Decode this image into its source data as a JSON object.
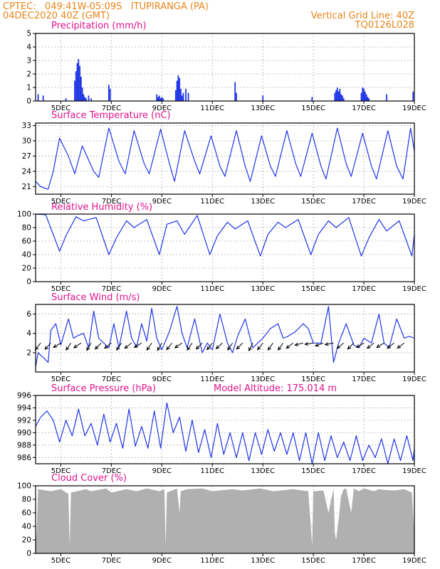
{
  "header": {
    "left_line1": "CPTEC:   049:41W-05:09S   ITUPIRANGA (PA)",
    "left_line2": "04DEC2020 40Z (GMT)",
    "right_line1": "Vertical Grid Line: 40Z",
    "right_line2": "TQ0126L028"
  },
  "colors": {
    "header": "#e8841a",
    "panel_title": "#e0148c",
    "series_line": "#1f35e6",
    "precip_bar": "#1f35e6",
    "cloud_fill": "#b0b0b0",
    "wind_arrow": "#000000"
  },
  "chart_data": [
    {
      "id": "precip",
      "type": "bar",
      "title": "Precipitation (mm/h)",
      "x_tick_labels": [
        "5DEC",
        "7DEC",
        "9DEC",
        "11DEC",
        "13DEC",
        "15DEC",
        "17DEC",
        "19DEC"
      ],
      "x_range_days": [
        4.0,
        19.0
      ],
      "ylim": [
        0,
        5
      ],
      "y_ticks": [
        0,
        1,
        2,
        3,
        4,
        5
      ],
      "grid": true,
      "x": [
        4.1,
        4.3,
        5.2,
        5.55,
        5.6,
        5.65,
        5.7,
        5.75,
        5.8,
        5.85,
        5.9,
        5.95,
        6.0,
        6.1,
        6.2,
        6.9,
        6.95,
        8.8,
        8.85,
        8.9,
        8.95,
        9.0,
        9.05,
        9.55,
        9.6,
        9.65,
        9.7,
        9.75,
        9.8,
        9.85,
        9.95,
        10.05,
        11.9,
        11.95,
        13.0,
        14.95,
        15.85,
        15.9,
        15.95,
        16.0,
        16.05,
        16.1,
        16.15,
        16.2,
        16.9,
        16.95,
        17.0,
        17.05,
        17.1,
        17.15,
        17.2,
        17.9,
        18.95
      ],
      "values": [
        0.5,
        0.4,
        0.2,
        1.5,
        2.2,
        2.8,
        3.1,
        2.6,
        1.8,
        1.0,
        0.5,
        0.3,
        0.2,
        0.4,
        0.2,
        1.2,
        0.9,
        0.5,
        0.3,
        0.4,
        0.2,
        0.3,
        0.2,
        0.8,
        1.5,
        1.9,
        1.7,
        0.9,
        0.4,
        0.6,
        0.9,
        0.6,
        1.4,
        0.6,
        0.4,
        0.3,
        0.6,
        0.8,
        1.0,
        0.7,
        0.9,
        0.5,
        0.4,
        0.2,
        0.6,
        1.0,
        0.9,
        0.7,
        0.5,
        0.3,
        0.2,
        0.5,
        0.7
      ]
    },
    {
      "id": "temp",
      "type": "line",
      "title": "Surface Temperature (nC)",
      "x_tick_labels": [
        "5DEC",
        "7DEC",
        "9DEC",
        "11DEC",
        "13DEC",
        "15DEC",
        "17DEC",
        "19DEC"
      ],
      "x_range_days": [
        4.0,
        19.0
      ],
      "ylim": [
        19.5,
        33.5
      ],
      "y_ticks": [
        21,
        24,
        27,
        30,
        33
      ],
      "grid": true,
      "x": [
        4.0,
        4.2,
        4.4,
        4.5,
        4.7,
        4.95,
        5.3,
        5.55,
        5.85,
        6.3,
        6.5,
        6.9,
        7.3,
        7.55,
        7.9,
        8.3,
        8.5,
        8.95,
        9.3,
        9.5,
        9.9,
        10.3,
        10.5,
        10.95,
        11.3,
        11.5,
        11.95,
        12.3,
        12.5,
        12.95,
        13.3,
        13.5,
        13.95,
        14.3,
        14.5,
        14.95,
        15.3,
        15.5,
        15.95,
        16.3,
        16.5,
        16.95,
        17.3,
        17.5,
        17.95,
        18.3,
        18.55,
        18.85,
        19.0
      ],
      "values": [
        22.0,
        21.0,
        20.6,
        20.5,
        24.0,
        30.5,
        27.0,
        23.5,
        29.0,
        24.0,
        22.8,
        32.5,
        26.0,
        23.5,
        32.0,
        25.5,
        23.5,
        32.3,
        25.5,
        22.0,
        32.0,
        26.0,
        23.5,
        31.0,
        25.0,
        23.0,
        32.0,
        25.0,
        22.0,
        31.0,
        25.0,
        23.0,
        32.0,
        25.5,
        23.0,
        31.5,
        25.0,
        22.5,
        32.5,
        25.5,
        23.0,
        31.5,
        25.0,
        22.5,
        32.0,
        25.0,
        22.5,
        32.5,
        28.0
      ]
    },
    {
      "id": "rh",
      "type": "line",
      "title": "Relative Humidity (%)",
      "x_tick_labels": [
        "5DEC",
        "7DEC",
        "9DEC",
        "11DEC",
        "13DEC",
        "15DEC",
        "17DEC",
        "19DEC"
      ],
      "x_range_days": [
        4.0,
        19.0
      ],
      "ylim": [
        0,
        100
      ],
      "y_ticks": [
        0,
        20,
        40,
        60,
        80,
        100
      ],
      "grid": true,
      "x": [
        4.0,
        4.4,
        4.95,
        5.2,
        5.6,
        5.9,
        6.4,
        6.9,
        7.2,
        7.6,
        7.9,
        8.4,
        8.9,
        9.2,
        9.6,
        9.9,
        10.4,
        10.9,
        11.2,
        11.6,
        11.9,
        12.4,
        12.9,
        13.2,
        13.6,
        13.9,
        14.4,
        14.9,
        15.2,
        15.6,
        15.9,
        16.4,
        16.9,
        17.2,
        17.6,
        17.9,
        18.4,
        18.9,
        19.0
      ],
      "values": [
        100,
        99,
        45,
        68,
        96,
        90,
        95,
        40,
        65,
        90,
        80,
        92,
        40,
        85,
        90,
        70,
        98,
        40,
        68,
        88,
        78,
        90,
        38,
        70,
        88,
        80,
        92,
        40,
        70,
        90,
        80,
        95,
        38,
        65,
        92,
        75,
        90,
        38,
        70
      ]
    },
    {
      "id": "wind",
      "type": "line",
      "title": "Surface Wind (m/s)",
      "x_tick_labels": [
        "5DEC",
        "7DEC",
        "9DEC",
        "11DEC",
        "13DEC",
        "15DEC",
        "17DEC",
        "19DEC"
      ],
      "x_range_days": [
        4.0,
        19.0
      ],
      "ylim": [
        0,
        7
      ],
      "y_ticks": [
        2,
        4,
        6
      ],
      "grid": true,
      "x": [
        4.0,
        4.1,
        4.3,
        4.5,
        4.6,
        4.8,
        5.0,
        5.3,
        5.5,
        5.7,
        5.9,
        6.1,
        6.3,
        6.5,
        6.7,
        6.9,
        7.1,
        7.3,
        7.6,
        7.8,
        8.0,
        8.2,
        8.4,
        8.6,
        8.8,
        9.0,
        9.3,
        9.6,
        9.8,
        10.0,
        10.3,
        10.6,
        10.8,
        11.0,
        11.3,
        11.6,
        11.8,
        12.0,
        12.3,
        12.6,
        12.8,
        13.0,
        13.3,
        13.6,
        13.8,
        14.0,
        14.3,
        14.6,
        14.8,
        15.0,
        15.3,
        15.6,
        15.8,
        16.0,
        16.3,
        16.6,
        16.8,
        17.0,
        17.3,
        17.6,
        17.8,
        18.0,
        18.3,
        18.6,
        18.8,
        19.0
      ],
      "values": [
        0.5,
        2.0,
        1.5,
        1.0,
        4.3,
        5.0,
        2.8,
        5.5,
        3.5,
        3.8,
        4.0,
        2.5,
        6.3,
        3.5,
        3.0,
        2.5,
        5.0,
        2.5,
        6.3,
        3.5,
        2.6,
        5.0,
        3.2,
        6.6,
        3.5,
        2.3,
        4.2,
        6.8,
        4.0,
        2.5,
        5.5,
        2.0,
        3.0,
        2.3,
        6.0,
        3.0,
        2.0,
        3.7,
        5.5,
        2.5,
        3.0,
        3.5,
        4.5,
        5.0,
        3.5,
        3.7,
        4.2,
        5.0,
        4.5,
        3.0,
        3.0,
        6.8,
        1.0,
        3.0,
        5.0,
        2.8,
        2.5,
        3.5,
        3.0,
        6.0,
        3.0,
        2.5,
        5.5,
        3.5,
        3.7,
        3.5
      ],
      "arrows": {
        "x": [
          4.2,
          4.6,
          5.0,
          5.4,
          5.8,
          6.2,
          6.6,
          7.0,
          7.4,
          7.8,
          8.2,
          8.6,
          9.0,
          9.4,
          9.8,
          10.2,
          10.6,
          11.0,
          11.4,
          11.8,
          12.2,
          12.6,
          13.0,
          13.4,
          13.8,
          14.2,
          14.6,
          15.0,
          15.4,
          15.8,
          16.2,
          16.6,
          17.0,
          17.4,
          17.8,
          18.2,
          18.6
        ],
        "u": [
          -0.8,
          -0.9,
          -1.0,
          -0.7,
          -0.9,
          -0.6,
          -0.8,
          -0.9,
          -0.7,
          -0.9,
          -1.0,
          -0.7,
          -0.6,
          -0.8,
          -0.9,
          -0.7,
          -0.8,
          -0.8,
          -0.9,
          -0.7,
          -0.8,
          -0.6,
          -0.8,
          -0.7,
          -0.7,
          -0.9,
          -1.2,
          -1.3,
          -1.1,
          -1.6,
          -1.0,
          -0.9,
          -1.0,
          -0.9,
          -1.0,
          -0.9,
          -0.8
        ],
        "v": [
          -1.0,
          -1.0,
          -0.6,
          -1.0,
          -0.6,
          -1.0,
          -0.8,
          -0.7,
          -1.0,
          -0.7,
          -0.6,
          -1.0,
          -1.0,
          -1.0,
          -0.6,
          -1.0,
          -0.8,
          -1.0,
          -0.8,
          -1.0,
          -0.8,
          -1.2,
          -1.0,
          -1.0,
          -1.0,
          -0.7,
          -0.3,
          -0.2,
          -0.4,
          -0.3,
          -0.8,
          -0.9,
          -0.6,
          -0.7,
          -0.6,
          -0.7,
          -0.6
        ]
      }
    },
    {
      "id": "pressure",
      "type": "line",
      "title": "Surface Pressure (hPa)",
      "annotation": "Model Altitude: 175.014 m",
      "x_tick_labels": [
        "5DEC",
        "7DEC",
        "9DEC",
        "11DEC",
        "13DEC",
        "15DEC",
        "17DEC",
        "19DEC"
      ],
      "x_range_days": [
        4.0,
        19.0
      ],
      "ylim": [
        985,
        996
      ],
      "y_ticks": [
        986,
        988,
        990,
        992,
        994,
        996
      ],
      "grid": true,
      "x": [
        4.0,
        4.2,
        4.45,
        4.7,
        4.95,
        5.2,
        5.45,
        5.7,
        5.95,
        6.2,
        6.45,
        6.7,
        6.95,
        7.2,
        7.45,
        7.7,
        7.95,
        8.2,
        8.45,
        8.7,
        8.95,
        9.2,
        9.45,
        9.7,
        9.95,
        10.2,
        10.45,
        10.7,
        10.95,
        11.2,
        11.45,
        11.7,
        11.95,
        12.2,
        12.45,
        12.7,
        12.95,
        13.2,
        13.45,
        13.7,
        13.95,
        14.2,
        14.45,
        14.7,
        14.95,
        15.2,
        15.45,
        15.7,
        15.95,
        16.2,
        16.45,
        16.7,
        16.95,
        17.2,
        17.45,
        17.7,
        17.95,
        18.2,
        18.45,
        18.7,
        18.95,
        19.0
      ],
      "values": [
        991.0,
        992.5,
        993.5,
        992.0,
        988.5,
        992.0,
        989.5,
        993.8,
        989.5,
        991.5,
        988.0,
        993.0,
        988.5,
        991.5,
        987.5,
        993.8,
        987.8,
        991.0,
        987.5,
        993.5,
        987.5,
        994.8,
        990.0,
        992.5,
        987.0,
        992.0,
        986.8,
        990.5,
        986.0,
        991.5,
        986.5,
        990.0,
        986.0,
        990.0,
        985.5,
        990.0,
        986.5,
        990.5,
        987.0,
        990.0,
        986.5,
        990.0,
        985.5,
        990.0,
        985.0,
        990.0,
        985.5,
        989.5,
        986.0,
        988.5,
        985.5,
        989.5,
        985.5,
        988.0,
        986.0,
        989.0,
        985.0,
        989.0,
        985.5,
        989.5,
        985.5,
        987.5
      ]
    },
    {
      "id": "cloud",
      "type": "area",
      "title": "Cloud Cover (%)",
      "x_tick_labels": [
        "5DEC",
        "7DEC",
        "9DEC",
        "11DEC",
        "13DEC",
        "15DEC",
        "17DEC",
        "19DEC"
      ],
      "x_range_days": [
        4.0,
        19.0
      ],
      "ylim": [
        0,
        100
      ],
      "y_ticks": [
        0,
        20,
        40,
        60,
        80,
        100
      ],
      "grid": true,
      "x": [
        4.0,
        4.05,
        4.1,
        4.6,
        5.0,
        5.3,
        5.35,
        5.4,
        6.0,
        6.2,
        6.8,
        7.0,
        7.6,
        8.0,
        8.4,
        8.9,
        9.1,
        9.15,
        9.2,
        9.6,
        9.7,
        9.75,
        10.0,
        10.6,
        11.0,
        11.8,
        12.2,
        12.9,
        13.4,
        14.2,
        14.8,
        14.9,
        14.95,
        15.0,
        15.4,
        15.6,
        15.8,
        15.85,
        15.9,
        16.0,
        16.1,
        16.2,
        16.3,
        16.5,
        16.6,
        16.8,
        17.0,
        17.4,
        17.6,
        17.8,
        18.2,
        18.6,
        18.9,
        19.0
      ],
      "values": [
        10,
        40,
        95,
        92,
        95,
        88,
        10,
        90,
        95,
        92,
        96,
        90,
        95,
        92,
        96,
        92,
        95,
        10,
        90,
        96,
        60,
        92,
        95,
        96,
        92,
        95,
        93,
        96,
        92,
        95,
        92,
        40,
        10,
        92,
        93,
        60,
        96,
        30,
        20,
        50,
        85,
        95,
        96,
        60,
        96,
        92,
        96,
        92,
        95,
        94,
        93,
        95,
        90,
        30
      ]
    }
  ]
}
